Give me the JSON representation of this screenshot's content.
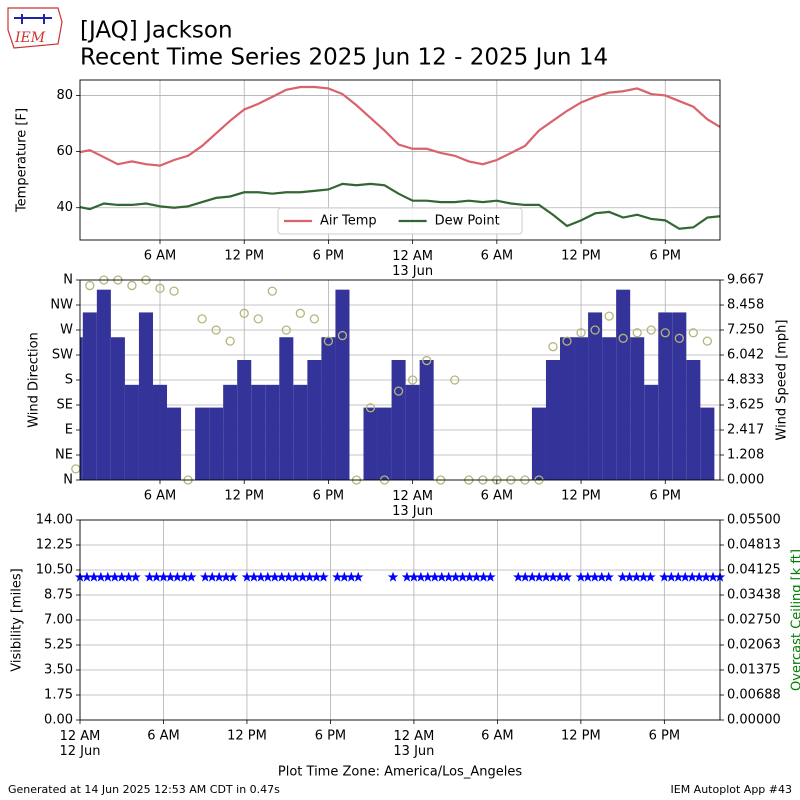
{
  "header": {
    "logo_text": "IEM",
    "title": "[JAQ] Jackson",
    "subtitle": "Recent Time Series 2025 Jun 12 - 2025 Jun 14"
  },
  "footer": {
    "generated": "Generated at 14 Jun 2025 12:53 AM CDT in 0.47s",
    "app": "IEM Autoplot App #43"
  },
  "chart_data": [
    {
      "type": "line",
      "xlim": [
        0.3,
        45.9
      ],
      "ylim": [
        28.5,
        85.5
      ],
      "yticks": [
        40,
        60,
        80
      ],
      "xticks": [
        {
          "value": 6,
          "label": "6 AM"
        },
        {
          "value": 12,
          "label": "12 PM"
        },
        {
          "value": 18,
          "label": "6 PM"
        },
        {
          "value": 24,
          "label": "12 AM\n13 Jun"
        },
        {
          "value": 30,
          "label": "6 AM"
        },
        {
          "value": 36,
          "label": "12 PM"
        },
        {
          "value": 42,
          "label": "6 PM"
        }
      ],
      "ylabel": "Temperature [F]",
      "grid": true,
      "legend": "lower center",
      "x": [
        0,
        1,
        2,
        3,
        4,
        5,
        6,
        7,
        8,
        9,
        10,
        11,
        12,
        13,
        14,
        15,
        16,
        17,
        18,
        19,
        20,
        21,
        22,
        23,
        24,
        25,
        26,
        27,
        28,
        29,
        30,
        31,
        32,
        33,
        34,
        35,
        36,
        37,
        38,
        39,
        40,
        41,
        42,
        43,
        44,
        45,
        46
      ],
      "series": [
        {
          "name": "Air Temp",
          "color": "#d9626b",
          "values": [
            59.5,
            60.5,
            58,
            55.5,
            56.5,
            55.5,
            55,
            57,
            58.5,
            62,
            66.5,
            71,
            75,
            77,
            79.5,
            82,
            83,
            83,
            82.5,
            80.5,
            76.5,
            72,
            67.5,
            62.5,
            61,
            61,
            59.5,
            58.5,
            56.5,
            55.5,
            57,
            59.5,
            62,
            67.5,
            71,
            74.5,
            77.5,
            79.5,
            81,
            81.5,
            82.5,
            80.5,
            80,
            78,
            76,
            71.5,
            68.5
          ]
        },
        {
          "name": "Dew Point",
          "color": "#336633",
          "values": [
            40.5,
            39.5,
            41.5,
            41,
            41,
            41.5,
            40.5,
            40,
            40.5,
            42,
            43.5,
            44,
            45.5,
            45.5,
            45,
            45.5,
            45.5,
            46,
            46.5,
            48.5,
            48,
            48.5,
            48,
            45,
            42.5,
            42.5,
            42,
            42,
            42.5,
            42,
            42.5,
            41.5,
            41,
            41,
            37.5,
            33.5,
            35.5,
            38,
            38.5,
            36.5,
            37.5,
            36,
            35.5,
            32.5,
            33,
            36.5,
            37
          ]
        }
      ]
    },
    {
      "type": "combo",
      "xlim": [
        0.3,
        45.9
      ],
      "ylim": [
        0,
        360
      ],
      "yticks": [
        {
          "value": 0,
          "label": "N"
        },
        {
          "value": 45,
          "label": "NE"
        },
        {
          "value": 90,
          "label": "E"
        },
        {
          "value": 135,
          "label": "SE"
        },
        {
          "value": 180,
          "label": "S"
        },
        {
          "value": 225,
          "label": "SW"
        },
        {
          "value": 270,
          "label": "W"
        },
        {
          "value": 315,
          "label": "NW"
        },
        {
          "value": 360,
          "label": "N"
        }
      ],
      "y2lim": [
        0,
        9.667
      ],
      "y2ticks": [
        {
          "value": 0,
          "label": "0.000"
        },
        1.208,
        2.417,
        3.625,
        4.833,
        6.042,
        {
          "value": 7.25,
          "label": "7.250"
        },
        8.458,
        9.667
      ],
      "xticks": [
        {
          "value": 6,
          "label": "6 AM"
        },
        {
          "value": 12,
          "label": "12 PM"
        },
        {
          "value": 18,
          "label": "6 PM"
        },
        {
          "value": 24,
          "label": "12 AM\n13 Jun"
        },
        {
          "value": 30,
          "label": "6 AM"
        },
        {
          "value": 36,
          "label": "12 PM"
        },
        {
          "value": 42,
          "label": "6 PM"
        }
      ],
      "ylabel": "Wind Direction",
      "y2label": "Wind Speed [mph]",
      "grid": true,
      "x": [
        0,
        1,
        2,
        3,
        4,
        5,
        6,
        7,
        8,
        9,
        10,
        11,
        12,
        13,
        14,
        15,
        16,
        17,
        18,
        19,
        20,
        21,
        22,
        23,
        24,
        25,
        26,
        27,
        28,
        29,
        30,
        31,
        32,
        33,
        34,
        35,
        36,
        37,
        38,
        39,
        40,
        41,
        42,
        43,
        44,
        45
      ],
      "series": [
        {
          "type": "bar",
          "axis": "y2",
          "color": "#333399",
          "values": [
            6.9,
            8.1,
            9.2,
            6.9,
            4.6,
            8.1,
            4.6,
            3.5,
            0,
            3.5,
            3.5,
            4.6,
            5.8,
            4.6,
            4.6,
            6.9,
            4.6,
            5.8,
            6.9,
            9.2,
            0,
            3.5,
            3.5,
            5.8,
            4.6,
            5.8,
            0,
            0,
            0,
            0,
            0,
            0,
            0,
            3.5,
            5.8,
            6.9,
            6.9,
            8.1,
            6.9,
            9.2,
            6.9,
            4.6,
            8.1,
            8.1,
            5.8,
            3.5
          ]
        },
        {
          "type": "scatter",
          "color": "#b5b57a",
          "values": [
            20,
            350,
            360,
            360,
            350,
            360,
            345,
            340,
            0,
            290,
            270,
            250,
            300,
            290,
            340,
            270,
            300,
            290,
            250,
            260,
            0,
            130,
            0,
            160,
            180,
            215,
            0,
            180,
            0,
            0,
            0,
            0,
            0,
            0,
            240,
            250,
            265,
            270,
            295,
            255,
            265,
            270,
            265,
            255,
            265,
            250
          ]
        }
      ]
    },
    {
      "type": "scatter",
      "marker": "star",
      "xlim": [
        0,
        46
      ],
      "ylim": [
        0,
        14
      ],
      "yticks": [
        {
          "value": 0,
          "label": "0.00"
        },
        {
          "value": 1.75,
          "label": "1.75"
        },
        {
          "value": 3.5,
          "label": "3.50"
        },
        {
          "value": 5.25,
          "label": "5.25"
        },
        {
          "value": 7,
          "label": "7.00"
        },
        {
          "value": 8.75,
          "label": "8.75"
        },
        {
          "value": 10.5,
          "label": "10.50"
        },
        {
          "value": 12.25,
          "label": "12.25"
        },
        {
          "value": 14,
          "label": "14.00"
        }
      ],
      "y2lim": [
        0,
        0.055
      ],
      "y2ticks": [
        {
          "value": 0,
          "label": "0.00000"
        },
        {
          "value": 0.006875,
          "label": "0.00688"
        },
        {
          "value": 0.01375,
          "label": "0.01375"
        },
        {
          "value": 0.020625,
          "label": "0.02063"
        },
        {
          "value": 0.0275,
          "label": "0.02750"
        },
        {
          "value": 0.034375,
          "label": "0.03438"
        },
        {
          "value": 0.04125,
          "label": "0.04125"
        },
        {
          "value": 0.048125,
          "label": "0.04813"
        },
        {
          "value": 0.055,
          "label": "0.05500"
        }
      ],
      "xticks": [
        {
          "value": 0,
          "label": "12 AM\n12 Jun"
        },
        {
          "value": 6,
          "label": "6 AM"
        },
        {
          "value": 12,
          "label": "12 PM"
        },
        {
          "value": 18,
          "label": "6 PM"
        },
        {
          "value": 24,
          "label": "12 AM\n13 Jun"
        },
        {
          "value": 30,
          "label": "6 AM"
        },
        {
          "value": 36,
          "label": "12 PM"
        },
        {
          "value": 42,
          "label": "6 PM"
        }
      ],
      "ylabel": "Visibility [miles]",
      "y2label": "Overcast Ceiling [k ft]",
      "y2label_color": "#008000",
      "xlabel": "Plot Time Zone: America/Los_Angeles",
      "grid": true,
      "x": [
        0,
        0.5,
        1,
        1.5,
        2,
        2.5,
        3,
        3.5,
        4,
        4.5,
        5,
        5.5,
        6,
        6.5,
        7,
        7.5,
        8,
        8.5,
        9,
        9.5,
        10,
        10.5,
        11,
        11.5,
        12,
        12.5,
        13,
        13.5,
        14,
        14.5,
        15,
        15.5,
        16,
        16.5,
        17,
        17.5,
        18,
        18.5,
        19,
        19.5,
        20,
        20.5,
        21,
        21.5,
        22,
        22.5,
        23,
        23.5,
        24,
        24.5,
        25,
        25.5,
        26,
        26.5,
        27,
        27.5,
        28,
        28.5,
        29,
        29.5,
        30,
        30.5,
        31,
        31.5,
        32,
        32.5,
        33,
        33.5,
        34,
        34.5,
        35,
        35.5,
        36,
        36.5,
        37,
        37.5,
        38,
        38.5,
        39,
        39.5,
        40,
        40.5,
        41,
        41.5,
        42,
        42.5,
        43,
        43.5,
        44,
        44.5,
        45,
        45.5,
        46
      ],
      "series": [
        {
          "color": "#0000ff",
          "values": [
            10,
            10,
            10,
            10,
            10,
            10,
            10,
            10,
            10,
            null,
            10,
            10,
            10,
            10,
            10,
            10,
            10,
            null,
            10,
            10,
            10,
            10,
            10,
            null,
            10,
            10,
            10,
            10,
            10,
            10,
            10,
            10,
            10,
            10,
            10,
            10,
            null,
            10,
            10,
            10,
            10,
            null,
            null,
            null,
            null,
            10,
            null,
            10,
            10,
            10,
            10,
            10,
            10,
            10,
            10,
            10,
            10,
            10,
            10,
            10,
            null,
            null,
            null,
            10,
            10,
            10,
            10,
            10,
            10,
            10,
            10,
            null,
            10,
            10,
            10,
            10,
            10,
            null,
            10,
            10,
            10,
            10,
            10,
            null,
            10,
            10,
            10,
            10,
            10,
            10,
            10,
            10,
            10
          ]
        }
      ]
    }
  ]
}
